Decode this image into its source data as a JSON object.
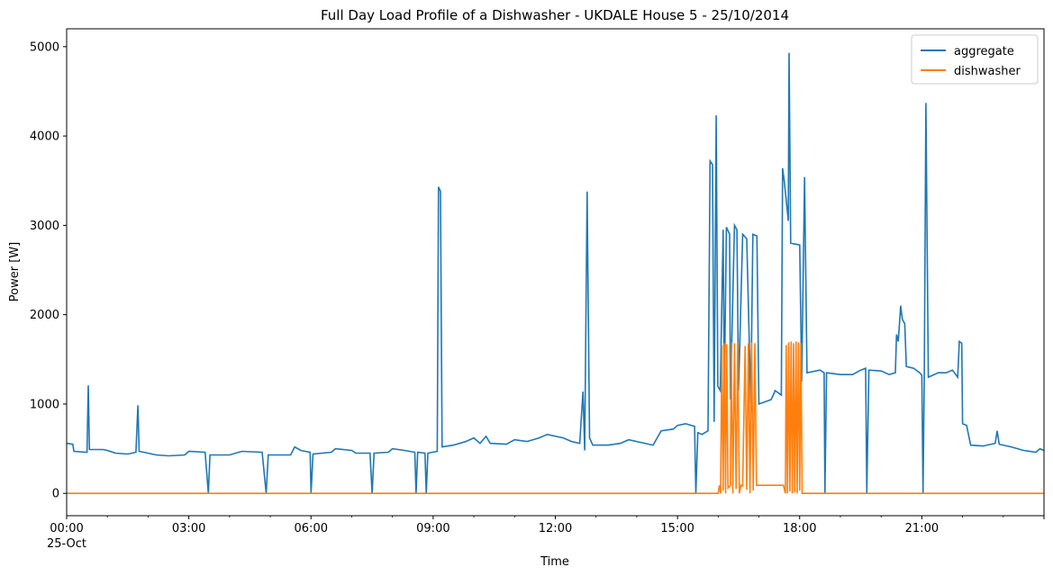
{
  "chart_data": {
    "type": "line",
    "title": "Full Day Load Profile of a Dishwasher - UKDALE House 5 - 25/10/2014",
    "xlabel": "Time",
    "ylabel": "Power [W]",
    "x_unit": "hours",
    "xlim": [
      0,
      24
    ],
    "ylim": [
      -250,
      5200
    ],
    "x_ticks": [
      {
        "value": 0,
        "label": "00:00",
        "sublabel": "25-Oct"
      },
      {
        "value": 3,
        "label": "03:00"
      },
      {
        "value": 6,
        "label": "06:00"
      },
      {
        "value": 9,
        "label": "09:00"
      },
      {
        "value": 12,
        "label": "12:00"
      },
      {
        "value": 15,
        "label": "15:00"
      },
      {
        "value": 18,
        "label": "18:00"
      },
      {
        "value": 21,
        "label": "21:00"
      }
    ],
    "y_ticks": [
      0,
      1000,
      2000,
      3000,
      4000,
      5000
    ],
    "grid": false,
    "legend": {
      "position": "top-right"
    },
    "series": [
      {
        "name": "aggregate",
        "color": "#1f77b4",
        "points": [
          [
            0,
            560
          ],
          [
            0.15,
            550
          ],
          [
            0.18,
            470
          ],
          [
            0.5,
            460
          ],
          [
            0.53,
            1210
          ],
          [
            0.56,
            490
          ],
          [
            0.9,
            490
          ],
          [
            1.0,
            480
          ],
          [
            1.2,
            450
          ],
          [
            1.5,
            440
          ],
          [
            1.7,
            460
          ],
          [
            1.75,
            985
          ],
          [
            1.78,
            470
          ],
          [
            2.0,
            450
          ],
          [
            2.2,
            430
          ],
          [
            2.5,
            420
          ],
          [
            2.9,
            430
          ],
          [
            3.0,
            470
          ],
          [
            3.4,
            460
          ],
          [
            3.48,
            0
          ],
          [
            3.52,
            430
          ],
          [
            4.0,
            430
          ],
          [
            4.3,
            470
          ],
          [
            4.8,
            460
          ],
          [
            4.9,
            0
          ],
          [
            4.95,
            430
          ],
          [
            5.5,
            430
          ],
          [
            5.6,
            520
          ],
          [
            5.75,
            480
          ],
          [
            5.98,
            460
          ],
          [
            6.0,
            0
          ],
          [
            6.05,
            440
          ],
          [
            6.5,
            460
          ],
          [
            6.6,
            500
          ],
          [
            7.0,
            480
          ],
          [
            7.1,
            450
          ],
          [
            7.45,
            450
          ],
          [
            7.5,
            0
          ],
          [
            7.55,
            450
          ],
          [
            7.9,
            460
          ],
          [
            8.0,
            500
          ],
          [
            8.3,
            480
          ],
          [
            8.55,
            460
          ],
          [
            8.58,
            0
          ],
          [
            8.62,
            460
          ],
          [
            8.8,
            450
          ],
          [
            8.83,
            0
          ],
          [
            8.87,
            450
          ],
          [
            9.1,
            470
          ],
          [
            9.13,
            3430
          ],
          [
            9.18,
            3380
          ],
          [
            9.22,
            520
          ],
          [
            9.5,
            540
          ],
          [
            9.8,
            580
          ],
          [
            10.0,
            620
          ],
          [
            10.15,
            560
          ],
          [
            10.3,
            640
          ],
          [
            10.4,
            560
          ],
          [
            10.8,
            550
          ],
          [
            11.0,
            600
          ],
          [
            11.3,
            580
          ],
          [
            11.6,
            620
          ],
          [
            11.8,
            660
          ],
          [
            12.2,
            620
          ],
          [
            12.4,
            580
          ],
          [
            12.6,
            560
          ],
          [
            12.68,
            1140
          ],
          [
            12.72,
            480
          ],
          [
            12.78,
            3380
          ],
          [
            12.84,
            620
          ],
          [
            12.92,
            540
          ],
          [
            13.3,
            540
          ],
          [
            13.6,
            560
          ],
          [
            13.8,
            600
          ],
          [
            14.2,
            560
          ],
          [
            14.4,
            540
          ],
          [
            14.6,
            700
          ],
          [
            14.9,
            720
          ],
          [
            15.0,
            760
          ],
          [
            15.2,
            780
          ],
          [
            15.42,
            750
          ],
          [
            15.45,
            0
          ],
          [
            15.5,
            680
          ],
          [
            15.6,
            660
          ],
          [
            15.75,
            700
          ],
          [
            15.8,
            3720
          ],
          [
            15.86,
            3680
          ],
          [
            15.9,
            800
          ],
          [
            15.95,
            4230
          ],
          [
            15.99,
            1200
          ],
          [
            16.05,
            1150
          ],
          [
            16.12,
            2950
          ],
          [
            16.15,
            1100
          ],
          [
            16.2,
            2980
          ],
          [
            16.28,
            2900
          ],
          [
            16.3,
            1050
          ],
          [
            16.4,
            3000
          ],
          [
            16.46,
            2950
          ],
          [
            16.5,
            1150
          ],
          [
            16.6,
            2900
          ],
          [
            16.7,
            2850
          ],
          [
            16.8,
            1000
          ],
          [
            16.85,
            2900
          ],
          [
            16.95,
            2880
          ],
          [
            17.0,
            1000
          ],
          [
            17.3,
            1050
          ],
          [
            17.4,
            1150
          ],
          [
            17.55,
            1100
          ],
          [
            17.58,
            3640
          ],
          [
            17.62,
            3500
          ],
          [
            17.7,
            3150
          ],
          [
            17.72,
            3050
          ],
          [
            17.74,
            4930
          ],
          [
            17.78,
            2800
          ],
          [
            18.0,
            2780
          ],
          [
            18.05,
            1250
          ],
          [
            18.12,
            3540
          ],
          [
            18.18,
            1350
          ],
          [
            18.5,
            1380
          ],
          [
            18.6,
            1350
          ],
          [
            18.62,
            0
          ],
          [
            18.66,
            1350
          ],
          [
            19.0,
            1330
          ],
          [
            19.3,
            1330
          ],
          [
            19.5,
            1380
          ],
          [
            19.62,
            1400
          ],
          [
            19.65,
            0
          ],
          [
            19.7,
            1380
          ],
          [
            20.0,
            1370
          ],
          [
            20.2,
            1330
          ],
          [
            20.35,
            1350
          ],
          [
            20.38,
            1780
          ],
          [
            20.42,
            1700
          ],
          [
            20.48,
            2100
          ],
          [
            20.52,
            1950
          ],
          [
            20.58,
            1900
          ],
          [
            20.62,
            1420
          ],
          [
            20.8,
            1400
          ],
          [
            20.95,
            1350
          ],
          [
            21.0,
            1320
          ],
          [
            21.03,
            0
          ],
          [
            21.06,
            1300
          ],
          [
            21.1,
            4370
          ],
          [
            21.16,
            1300
          ],
          [
            21.4,
            1350
          ],
          [
            21.6,
            1350
          ],
          [
            21.75,
            1380
          ],
          [
            21.88,
            1300
          ],
          [
            21.92,
            1700
          ],
          [
            21.98,
            1680
          ],
          [
            22.0,
            780
          ],
          [
            22.1,
            760
          ],
          [
            22.2,
            540
          ],
          [
            22.5,
            530
          ],
          [
            22.8,
            560
          ],
          [
            22.85,
            700
          ],
          [
            22.9,
            550
          ],
          [
            23.2,
            520
          ],
          [
            23.5,
            480
          ],
          [
            23.8,
            460
          ],
          [
            23.9,
            500
          ],
          [
            24.0,
            480
          ]
        ]
      },
      {
        "name": "dishwasher",
        "color": "#ff7f0e",
        "points": [
          [
            0,
            0
          ],
          [
            16.0,
            0
          ],
          [
            16.03,
            90
          ],
          [
            16.06,
            0
          ],
          [
            16.09,
            1660
          ],
          [
            16.12,
            30
          ],
          [
            16.15,
            1680
          ],
          [
            16.18,
            0
          ],
          [
            16.21,
            1670
          ],
          [
            16.24,
            60
          ],
          [
            16.3,
            90
          ],
          [
            16.32,
            1690
          ],
          [
            16.36,
            0
          ],
          [
            16.4,
            1680
          ],
          [
            16.44,
            50
          ],
          [
            16.48,
            1690
          ],
          [
            16.52,
            0
          ],
          [
            16.56,
            90
          ],
          [
            16.6,
            80
          ],
          [
            16.66,
            1650
          ],
          [
            16.7,
            40
          ],
          [
            16.74,
            1680
          ],
          [
            16.78,
            0
          ],
          [
            16.82,
            1690
          ],
          [
            16.86,
            30
          ],
          [
            16.9,
            1680
          ],
          [
            16.94,
            90
          ],
          [
            17.0,
            90
          ],
          [
            17.3,
            90
          ],
          [
            17.6,
            90
          ],
          [
            17.65,
            0
          ],
          [
            17.67,
            1660
          ],
          [
            17.7,
            0
          ],
          [
            17.73,
            1690
          ],
          [
            17.76,
            20
          ],
          [
            17.79,
            1700
          ],
          [
            17.82,
            0
          ],
          [
            17.85,
            1680
          ],
          [
            17.88,
            10
          ],
          [
            17.91,
            1700
          ],
          [
            17.94,
            0
          ],
          [
            17.97,
            1690
          ],
          [
            18.0,
            30
          ],
          [
            18.03,
            1680
          ],
          [
            18.06,
            0
          ],
          [
            18.09,
            0
          ],
          [
            24.0,
            0
          ]
        ]
      }
    ]
  }
}
